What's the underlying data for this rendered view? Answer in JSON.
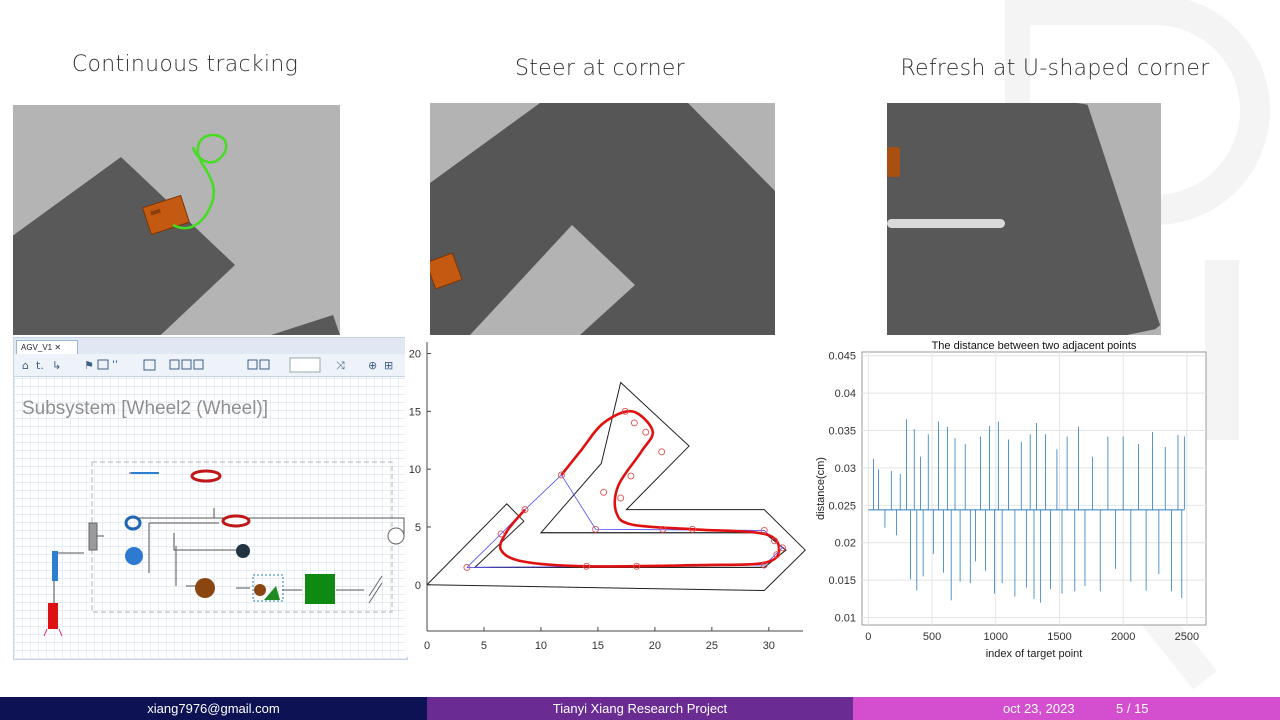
{
  "captions": {
    "left": "Continuous tracking",
    "middle": "Steer at corner",
    "right": "Refresh at U-shaped corner"
  },
  "simulink": {
    "tab_label": "AGV_V1",
    "subsystem_title": "Subsystem [Wheel2 (Wheel)]",
    "toolbar_icons": [
      "home-icon",
      "up-icon",
      "arrow-icon",
      "library-icon",
      "signal-icon",
      "grid-icon",
      "layout-icon",
      "copy-icon",
      "zoom-icon",
      "shuffle-icon",
      "zoom-in-icon"
    ]
  },
  "chart_path": {
    "type": "line",
    "xticks": [
      "0",
      "5",
      "10",
      "15",
      "20",
      "25",
      "30"
    ],
    "yticks": [
      "0",
      "5",
      "10",
      "15",
      "20"
    ],
    "xlim": [
      0,
      33
    ],
    "ylim": [
      -4,
      21
    ],
    "track_outline": [
      [
        0,
        0
      ],
      [
        7,
        7
      ],
      [
        8.5,
        5.5
      ],
      [
        4.2,
        1.5
      ],
      [
        29.6,
        1.5
      ],
      [
        31.5,
        3
      ],
      [
        29.6,
        4.5
      ],
      [
        10,
        4.5
      ],
      [
        15.3,
        10.5
      ],
      [
        17,
        17.5
      ],
      [
        23,
        12
      ],
      [
        17.5,
        6.5
      ],
      [
        29.6,
        6.5
      ],
      [
        33.2,
        3
      ],
      [
        29.6,
        -0.5
      ],
      [
        0,
        0
      ]
    ],
    "track_inner": [
      [
        5.5,
        1.5
      ],
      [
        29.6,
        1.5
      ],
      [
        31.5,
        3
      ],
      [
        29.6,
        4.5
      ],
      [
        10,
        4.5
      ]
    ],
    "track_top": [
      [
        10.9,
        10.5
      ],
      [
        17.3,
        17.5
      ],
      [
        23.3,
        12
      ],
      [
        17.3,
        6.0
      ]
    ],
    "waypoints": [
      [
        3.5,
        1.5
      ],
      [
        6.5,
        4.4
      ],
      [
        8.6,
        6.5
      ],
      [
        11.8,
        9.5
      ],
      [
        14.8,
        4.8
      ],
      [
        15.5,
        8.0
      ],
      [
        17.4,
        15.0
      ],
      [
        18.2,
        14.0
      ],
      [
        19.2,
        13.2
      ],
      [
        20.6,
        11.5
      ],
      [
        17.9,
        9.4
      ],
      [
        17.0,
        7.5
      ],
      [
        20.7,
        4.8
      ],
      [
        23.3,
        4.8
      ],
      [
        29.6,
        4.7
      ],
      [
        30.5,
        3.8
      ],
      [
        31.2,
        3.2
      ],
      [
        30.7,
        2.6
      ],
      [
        29.6,
        1.7
      ],
      [
        18.4,
        1.6
      ],
      [
        14.0,
        1.6
      ]
    ],
    "polygon": [
      [
        3.5,
        1.5
      ],
      [
        6.5,
        4.4
      ],
      [
        8.6,
        6.5
      ],
      [
        11.8,
        9.5
      ],
      [
        14.8,
        4.8
      ],
      [
        29.6,
        4.7
      ],
      [
        31.2,
        3.2
      ],
      [
        29.6,
        1.7
      ],
      [
        3.5,
        1.5
      ]
    ],
    "tracked_path": [
      [
        8.6,
        6.5
      ],
      [
        7.0,
        4.6
      ],
      [
        6.5,
        3.0
      ],
      [
        8.5,
        2.0
      ],
      [
        14.0,
        1.6
      ],
      [
        24.0,
        1.7
      ],
      [
        29.6,
        1.9
      ],
      [
        30.9,
        3.0
      ],
      [
        29.6,
        4.4
      ],
      [
        23.3,
        4.8
      ],
      [
        18.0,
        5.2
      ],
      [
        16.6,
        6.3
      ],
      [
        16.8,
        8.6
      ],
      [
        18.8,
        11.5
      ],
      [
        19.8,
        13.3
      ],
      [
        18.0,
        15.0
      ],
      [
        15.5,
        14.0
      ],
      [
        13.5,
        11.6
      ],
      [
        11.8,
        9.5
      ]
    ]
  },
  "chart_distance": {
    "type": "line",
    "title": "The distance between two adjacent points",
    "xlabel": "index of target point",
    "ylabel": "distance(cm)",
    "xticks": [
      "0",
      "500",
      "1000",
      "1500",
      "2000",
      "2500"
    ],
    "yticks": [
      "0.01",
      "0.015",
      "0.02",
      "0.025",
      "0.03",
      "0.035",
      "0.04",
      "0.045"
    ],
    "xlim": [
      -50,
      2650
    ],
    "ylim": [
      0.009,
      0.0455
    ],
    "baseline": 0.0244,
    "baseline_range": [
      0,
      2480
    ],
    "spikes": [
      [
        40,
        0.0312
      ],
      [
        80,
        0.0298
      ],
      [
        130,
        0.022
      ],
      [
        180,
        0.0296
      ],
      [
        220,
        0.021
      ],
      [
        250,
        0.0292
      ],
      [
        300,
        0.0365
      ],
      [
        330,
        0.0151
      ],
      [
        360,
        0.0352
      ],
      [
        380,
        0.0136
      ],
      [
        410,
        0.0315
      ],
      [
        430,
        0.0155
      ],
      [
        470,
        0.0345
      ],
      [
        510,
        0.0185
      ],
      [
        550,
        0.0362
      ],
      [
        590,
        0.016
      ],
      [
        620,
        0.0355
      ],
      [
        650,
        0.0123
      ],
      [
        680,
        0.034
      ],
      [
        720,
        0.0148
      ],
      [
        760,
        0.0332
      ],
      [
        800,
        0.0146
      ],
      [
        840,
        0.0175
      ],
      [
        880,
        0.0342
      ],
      [
        920,
        0.0162
      ],
      [
        950,
        0.0356
      ],
      [
        990,
        0.0132
      ],
      [
        1020,
        0.0362
      ],
      [
        1050,
        0.0146
      ],
      [
        1100,
        0.0338
      ],
      [
        1150,
        0.0128
      ],
      [
        1200,
        0.0335
      ],
      [
        1240,
        0.014
      ],
      [
        1270,
        0.0345
      ],
      [
        1300,
        0.0125
      ],
      [
        1320,
        0.036
      ],
      [
        1350,
        0.012
      ],
      [
        1390,
        0.0345
      ],
      [
        1430,
        0.0138
      ],
      [
        1480,
        0.0325
      ],
      [
        1520,
        0.0132
      ],
      [
        1560,
        0.0342
      ],
      [
        1620,
        0.0135
      ],
      [
        1650,
        0.0355
      ],
      [
        1700,
        0.0142
      ],
      [
        1760,
        0.0315
      ],
      [
        1820,
        0.0135
      ],
      [
        1880,
        0.0342
      ],
      [
        1940,
        0.0165
      ],
      [
        2000,
        0.0342
      ],
      [
        2060,
        0.0148
      ],
      [
        2120,
        0.0332
      ],
      [
        2180,
        0.0136
      ],
      [
        2230,
        0.0348
      ],
      [
        2280,
        0.0158
      ],
      [
        2330,
        0.0328
      ],
      [
        2380,
        0.0135
      ],
      [
        2430,
        0.0344
      ],
      [
        2460,
        0.0126
      ],
      [
        2480,
        0.0342
      ]
    ]
  },
  "footer": {
    "email": "xiang7976@gmail.com",
    "project": "Tianyi Xiang Research Project",
    "date": "oct 23, 2023",
    "page": "5 / 15",
    "colors": {
      "left": "#0d1255",
      "middle": "#6a2c93",
      "right": "#d44fcf"
    }
  }
}
